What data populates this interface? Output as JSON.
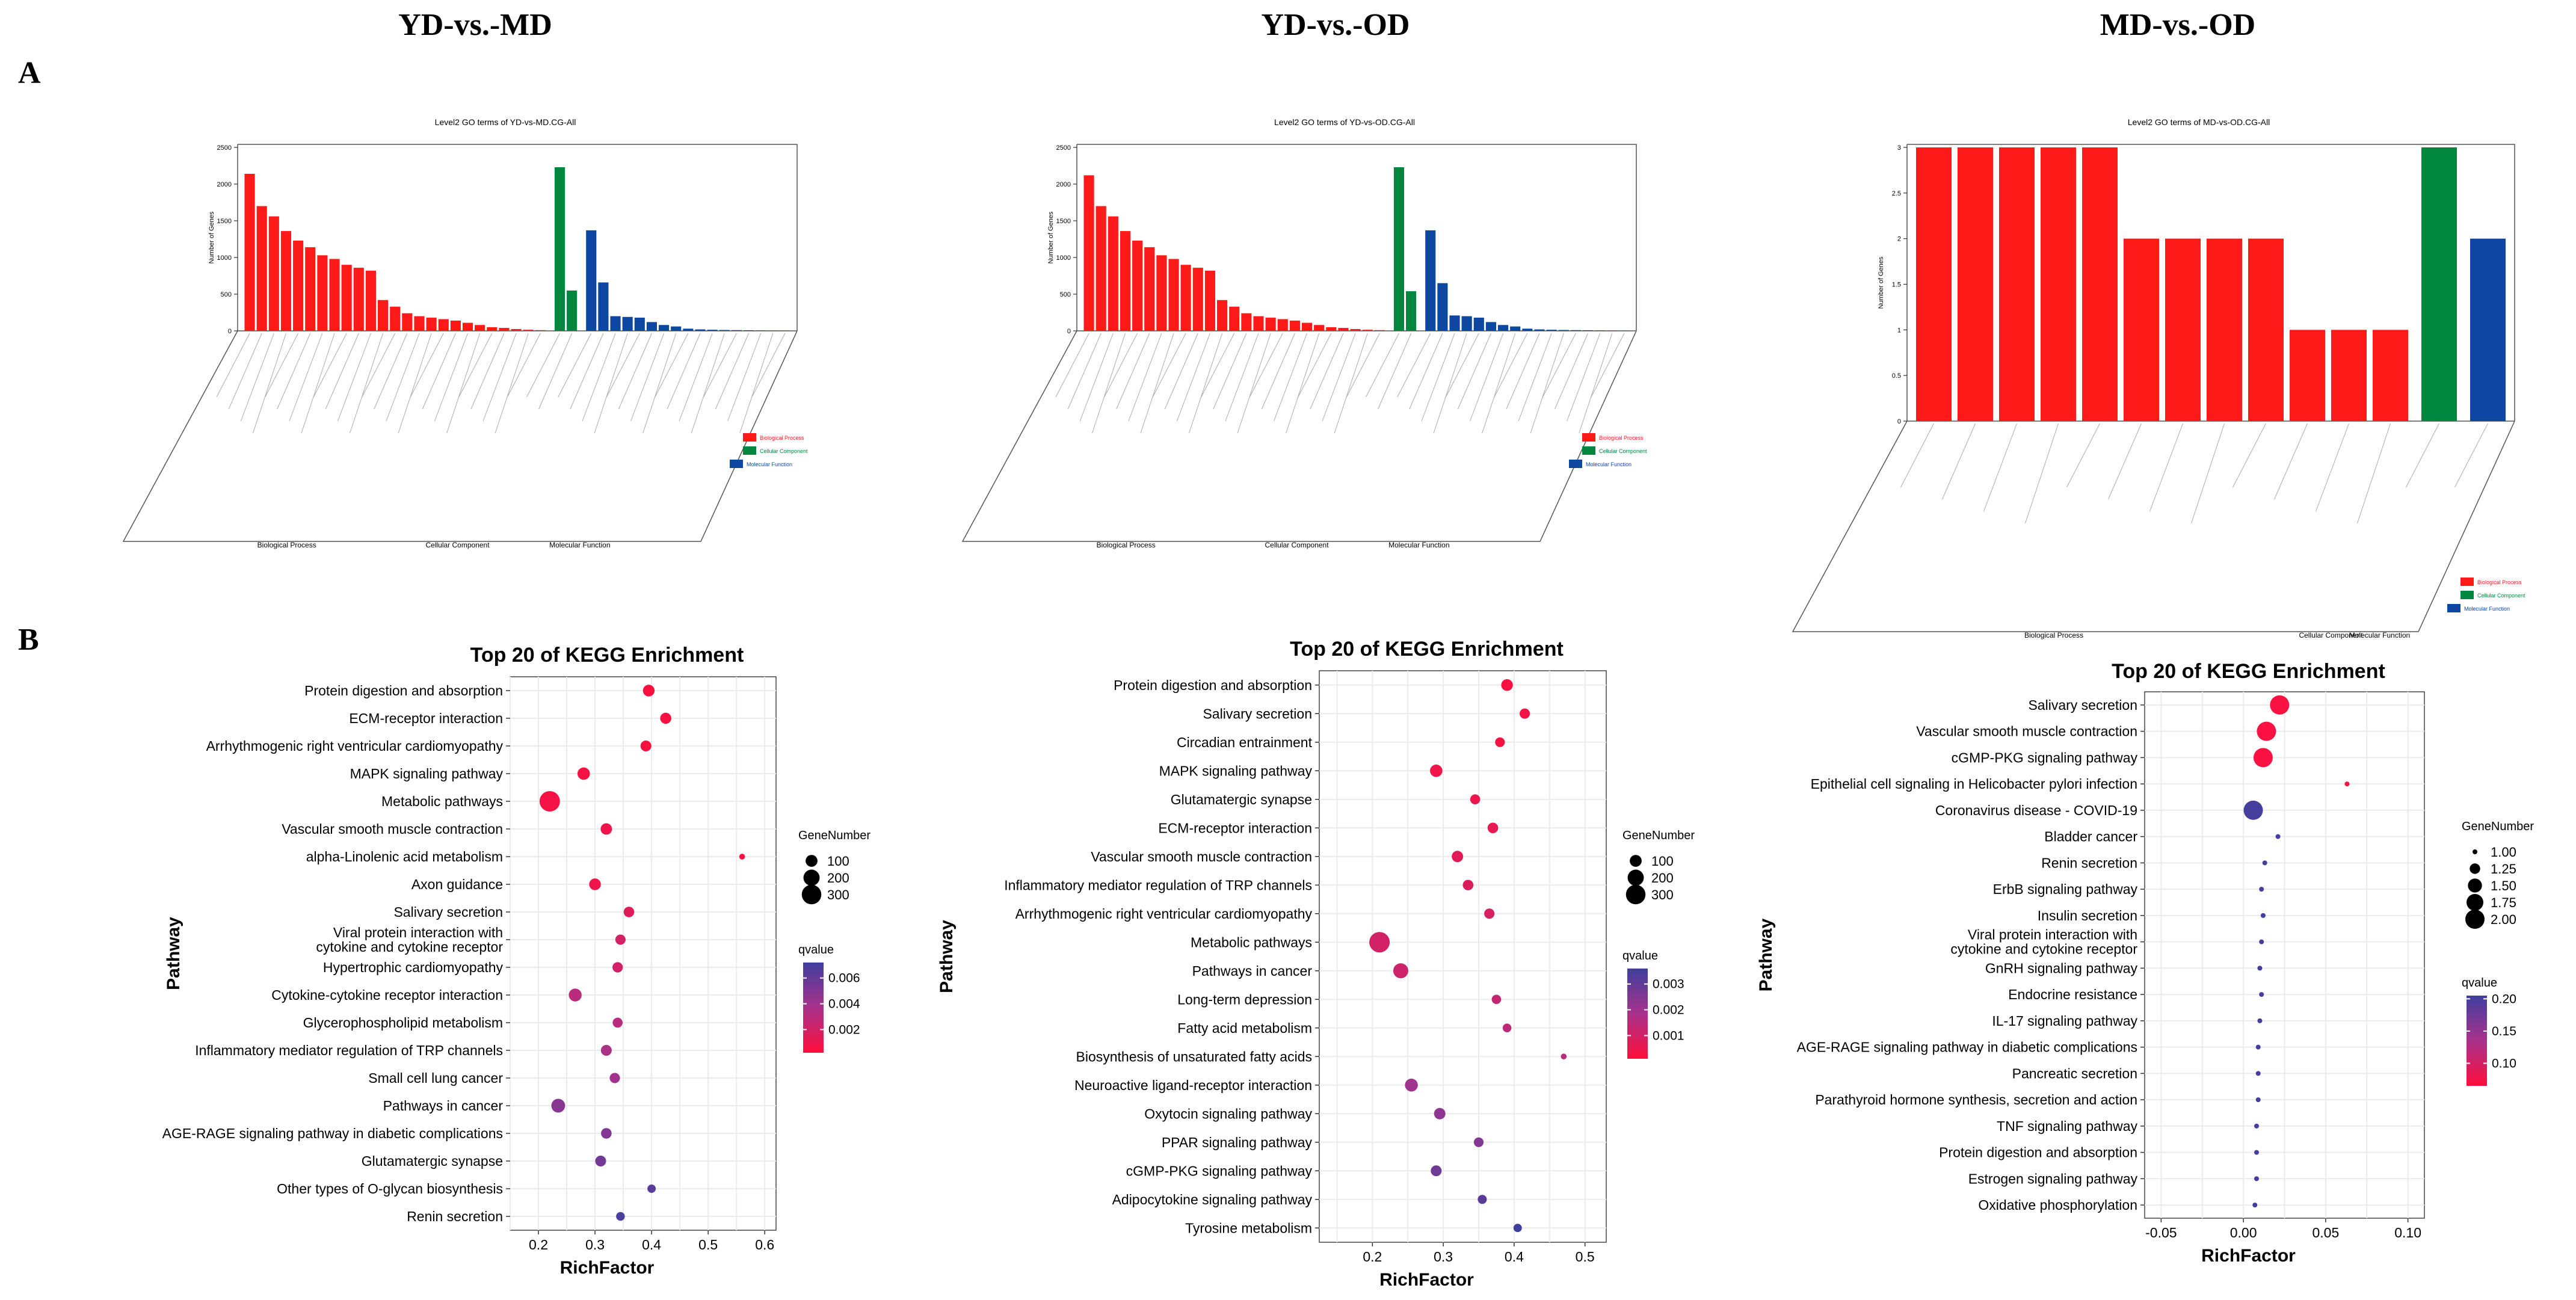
{
  "figure": {
    "column_titles": [
      "YD-vs.-MD",
      "YD-vs.-OD",
      "MD-vs.-OD"
    ],
    "panel_labels": [
      "A",
      "B"
    ]
  },
  "colors": {
    "bp": "#ff1a1a",
    "cc": "#00873d",
    "mf": "#0d47a1",
    "grad_top": "#3f3f9e",
    "grad_mid": "#a8328c",
    "grad_bottom": "#ff0f3c",
    "grid": "#ebebeb"
  },
  "chart_data": [
    {
      "type": "bar",
      "panel": "A",
      "comparison": "YD-vs.-MD",
      "title": "Level2 GO terms of YD-vs-MD.CG-All",
      "ylabel": "Number of Genes",
      "ylim": [
        0,
        2500
      ],
      "yticks": [
        0,
        500,
        1000,
        1500,
        2000,
        2500
      ],
      "groups": [
        "Biological Process",
        "Cellular Component",
        "Molecular Function"
      ],
      "legend": [
        "Biological Process",
        "Cellular Component",
        "Molecular Function"
      ],
      "series": [
        {
          "name": "Biological Process",
          "values": [
            2140,
            1700,
            1560,
            1360,
            1230,
            1140,
            1030,
            980,
            900,
            860,
            820,
            420,
            330,
            240,
            200,
            180,
            160,
            140,
            110,
            80,
            50,
            40,
            25,
            15,
            10
          ]
        },
        {
          "name": "Cellular Component",
          "values": [
            2230,
            550
          ]
        },
        {
          "name": "Molecular Function",
          "values": [
            1370,
            660,
            200,
            190,
            180,
            120,
            80,
            60,
            30,
            20,
            15,
            12,
            10,
            8,
            6,
            5,
            4
          ]
        }
      ]
    },
    {
      "type": "bar",
      "panel": "A",
      "comparison": "YD-vs.-OD",
      "title": "Level2 GO terms of YD-vs-OD.CG-All",
      "ylabel": "Number of Genes",
      "ylim": [
        0,
        2500
      ],
      "yticks": [
        0,
        500,
        1000,
        1500,
        2000,
        2500
      ],
      "groups": [
        "Biological Process",
        "Cellular Component",
        "Molecular Function"
      ],
      "legend": [
        "Biological Process",
        "Cellular Component",
        "Molecular Function"
      ],
      "series": [
        {
          "name": "Biological Process",
          "values": [
            2120,
            1700,
            1560,
            1360,
            1230,
            1140,
            1030,
            980,
            900,
            860,
            820,
            420,
            330,
            240,
            200,
            180,
            160,
            140,
            110,
            80,
            50,
            40,
            25,
            15,
            10
          ]
        },
        {
          "name": "Cellular Component",
          "values": [
            2230,
            540
          ]
        },
        {
          "name": "Molecular Function",
          "values": [
            1370,
            650,
            210,
            200,
            180,
            120,
            80,
            60,
            30,
            20,
            15,
            12,
            10,
            8,
            6,
            5,
            4
          ]
        }
      ]
    },
    {
      "type": "bar",
      "panel": "A",
      "comparison": "MD-vs.-OD",
      "title": "Level2 GO terms of MD-vs-OD.CG-All",
      "ylabel": "Number of Genes",
      "ylim": [
        0,
        3
      ],
      "yticks": [
        0,
        0.5,
        1,
        1.5,
        2,
        2.5,
        3
      ],
      "groups": [
        "Biological Process",
        "Cellular Component",
        "Molecular Function"
      ],
      "legend": [
        "Biological Process",
        "Cellular Component",
        "Molecular Function"
      ],
      "series": [
        {
          "name": "Biological Process",
          "values": [
            3,
            3,
            3,
            3,
            3,
            2,
            2,
            2,
            2,
            1,
            1,
            1
          ]
        },
        {
          "name": "Cellular Component",
          "values": [
            3
          ]
        },
        {
          "name": "Molecular Function",
          "values": [
            2
          ]
        }
      ]
    },
    {
      "type": "scatter",
      "panel": "B",
      "comparison": "YD-vs.-MD",
      "title": "Top 20 of KEGG Enrichment",
      "xlabel": "RichFactor",
      "ylabel": "Pathway",
      "xlim": [
        0.15,
        0.62
      ],
      "xticks": [
        0.2,
        0.3,
        0.4,
        0.5,
        0.6
      ],
      "xtick_labels": [
        "0.2",
        "0.3",
        "0.4",
        "0.5",
        "0.6"
      ],
      "size_legend_title": "GeneNumber",
      "size_legend": [
        100,
        200,
        300
      ],
      "size_range": [
        1,
        330
      ],
      "color_legend_title": "qvalue",
      "color_range": [
        0.0002,
        0.0072
      ],
      "color_ticks": [
        0.002,
        0.004,
        0.006
      ],
      "color_tick_labels": [
        "0.002",
        "0.004",
        "0.006"
      ],
      "pathways": [
        "Protein digestion and absorption",
        "ECM-receptor interaction",
        "Arrhythmogenic right ventricular cardiomyopathy",
        "MAPK signaling pathway",
        "Metabolic pathways",
        "Vascular smooth muscle contraction",
        "alpha-Linolenic acid metabolism",
        "Axon guidance",
        "Salivary secretion",
        "Viral protein interaction with\ncytokine and cytokine receptor",
        "Hypertrophic cardiomyopathy",
        "Cytokine-cytokine receptor interaction",
        "Glycerophospholipid metabolism",
        "Inflammatory mediator regulation of TRP channels",
        "Small cell lung cancer",
        "Pathways in cancer",
        "AGE-RAGE signaling pathway in diabetic complications",
        "Glutamatergic synapse",
        "Other types of O-glycan biosynthesis",
        "Renin secretion"
      ],
      "richfactor": [
        0.395,
        0.425,
        0.39,
        0.28,
        0.22,
        0.32,
        0.56,
        0.3,
        0.36,
        0.345,
        0.34,
        0.265,
        0.34,
        0.32,
        0.335,
        0.235,
        0.32,
        0.31,
        0.4,
        0.345
      ],
      "genenumber": [
        95,
        85,
        80,
        110,
        330,
        90,
        10,
        95,
        75,
        70,
        72,
        120,
        65,
        80,
        70,
        140,
        75,
        80,
        40,
        45
      ],
      "qvalue": [
        0.0003,
        0.0004,
        0.0004,
        0.0005,
        0.0006,
        0.0008,
        0.0005,
        0.0008,
        0.0015,
        0.002,
        0.002,
        0.003,
        0.003,
        0.0035,
        0.004,
        0.0048,
        0.005,
        0.0055,
        0.0063,
        0.0068
      ]
    },
    {
      "type": "scatter",
      "panel": "B",
      "comparison": "YD-vs.-OD",
      "title": "Top 20 of KEGG Enrichment",
      "xlabel": "RichFactor",
      "ylabel": "Pathway",
      "xlim": [
        0.125,
        0.53
      ],
      "xticks": [
        0.2,
        0.3,
        0.4,
        0.5
      ],
      "xtick_labels": [
        "0.2",
        "0.3",
        "0.4",
        "0.5"
      ],
      "size_legend_title": "GeneNumber",
      "size_legend": [
        100,
        200,
        300
      ],
      "size_range": [
        1,
        330
      ],
      "color_legend_title": "qvalue",
      "color_range": [
        0.0001,
        0.0036
      ],
      "color_ticks": [
        0.001,
        0.002,
        0.003
      ],
      "color_tick_labels": [
        "0.001",
        "0.002",
        "0.003"
      ],
      "pathways": [
        "Protein digestion and absorption",
        "Salivary secretion",
        "Circadian entrainment",
        "MAPK signaling pathway",
        "Glutamatergic synapse",
        "ECM-receptor interaction",
        "Vascular smooth muscle contraction",
        "Inflammatory mediator regulation of TRP channels",
        "Arrhythmogenic right ventricular cardiomyopathy",
        "Metabolic pathways",
        "Pathways in cancer",
        "Long-term depression",
        "Fatty acid metabolism",
        "Biosynthesis of unsaturated fatty acids",
        "Neuroactive ligand-receptor interaction",
        "Oxytocin signaling pathway",
        "PPAR signaling pathway",
        "cGMP-PKG signaling pathway",
        "Adipocytokine signaling pathway",
        "Tyrosine metabolism"
      ],
      "richfactor": [
        0.39,
        0.415,
        0.38,
        0.29,
        0.345,
        0.37,
        0.32,
        0.335,
        0.365,
        0.21,
        0.24,
        0.375,
        0.39,
        0.47,
        0.255,
        0.295,
        0.35,
        0.29,
        0.355,
        0.405
      ],
      "genenumber": [
        95,
        70,
        60,
        110,
        65,
        75,
        90,
        75,
        70,
        330,
        170,
        55,
        45,
        10,
        120,
        90,
        60,
        80,
        50,
        40
      ],
      "qvalue": [
        0.0002,
        0.0003,
        0.0003,
        0.0004,
        0.0005,
        0.0006,
        0.0007,
        0.0008,
        0.0009,
        0.001,
        0.0011,
        0.0013,
        0.0014,
        0.0015,
        0.002,
        0.0023,
        0.0025,
        0.0028,
        0.0032,
        0.0036
      ]
    },
    {
      "type": "scatter",
      "panel": "B",
      "comparison": "MD-vs.-OD",
      "title": "Top 20 of KEGG Enrichment",
      "xlabel": "RichFactor",
      "ylabel": "Pathway",
      "xlim": [
        -0.06,
        0.11
      ],
      "xticks": [
        -0.05,
        0,
        0.05,
        0.1
      ],
      "xtick_labels": [
        "-0.05",
        "0.00",
        "0.05",
        "0.10"
      ],
      "size_legend_title": "GeneNumber",
      "size_legend": [
        1,
        1.25,
        1.5,
        1.75,
        2
      ],
      "size_legend_labels": [
        "1.00",
        "1.25",
        "1.50",
        "1.75",
        "2.00"
      ],
      "size_range": [
        1,
        2
      ],
      "color_legend_title": "qvalue",
      "color_range": [
        0.065,
        0.205
      ],
      "color_ticks": [
        0.1,
        0.15,
        0.2
      ],
      "color_tick_labels": [
        "0.10",
        "0.15",
        "0.20"
      ],
      "pathways": [
        "Salivary secretion",
        "Vascular smooth muscle contraction",
        "cGMP-PKG signaling pathway",
        "Epithelial cell signaling in Helicobacter pylori infection",
        "Coronavirus disease - COVID-19",
        "Bladder cancer",
        "Renin secretion",
        "ErbB signaling pathway",
        "Insulin secretion",
        "Viral protein interaction with\ncytokine and cytokine receptor",
        "GnRH signaling pathway",
        "Endocrine resistance",
        "IL-17 signaling pathway",
        "AGE-RAGE signaling pathway in diabetic complications",
        "Pancreatic secretion",
        "Parathyroid hormone synthesis, secretion and action",
        "TNF signaling pathway",
        "Protein digestion and absorption",
        "Estrogen signaling pathway",
        "Oxidative phosphorylation"
      ],
      "richfactor": [
        0.022,
        0.014,
        0.012,
        0.063,
        0.006,
        0.021,
        0.013,
        0.011,
        0.012,
        0.011,
        0.01,
        0.011,
        0.01,
        0.009,
        0.009,
        0.009,
        0.008,
        0.008,
        0.008,
        0.007
      ],
      "genenumber": [
        2,
        2,
        2,
        1,
        2,
        1,
        1,
        1,
        1,
        1,
        1,
        1,
        1,
        1,
        1,
        1,
        1,
        1,
        1,
        1
      ],
      "qvalue": [
        0.07,
        0.07,
        0.07,
        0.07,
        0.2,
        0.2,
        0.2,
        0.2,
        0.2,
        0.2,
        0.2,
        0.2,
        0.2,
        0.2,
        0.2,
        0.2,
        0.2,
        0.2,
        0.2,
        0.2
      ]
    }
  ]
}
